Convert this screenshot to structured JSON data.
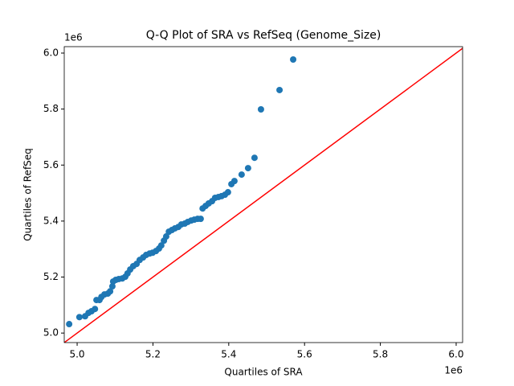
{
  "chart_data": {
    "type": "scatter",
    "title": "Q-Q Plot of SRA vs RefSeq (Genome_Size)",
    "x_label": "Quartiles of SRA",
    "y_label": "Quartiles of RefSeq",
    "x_offset_label": "1e6",
    "y_offset_label": "1e6",
    "xlim": [
      4.966,
      6.017
    ],
    "ylim": [
      4.966,
      6.023
    ],
    "xticks": [
      {
        "value": 5.0,
        "label": "5.0"
      },
      {
        "value": 5.2,
        "label": "5.2"
      },
      {
        "value": 5.4,
        "label": "5.4"
      },
      {
        "value": 5.6,
        "label": "5.6"
      },
      {
        "value": 5.8,
        "label": "5.8"
      },
      {
        "value": 6.0,
        "label": "6.0"
      }
    ],
    "yticks": [
      {
        "value": 5.0,
        "label": "5.0"
      },
      {
        "value": 5.2,
        "label": "5.2"
      },
      {
        "value": 5.4,
        "label": "5.4"
      },
      {
        "value": 5.6,
        "label": "5.6"
      },
      {
        "value": 5.8,
        "label": "5.8"
      },
      {
        "value": 6.0,
        "label": "6.0"
      }
    ],
    "color": "#1f77b4",
    "reference_line_color": "#ff0000",
    "x": [
      4.979,
      5.006,
      5.021,
      5.03,
      5.038,
      5.047,
      5.051,
      5.059,
      5.064,
      5.072,
      5.081,
      5.087,
      5.093,
      5.095,
      5.102,
      5.11,
      5.119,
      5.127,
      5.133,
      5.14,
      5.148,
      5.157,
      5.165,
      5.174,
      5.182,
      5.191,
      5.199,
      5.208,
      5.216,
      5.222,
      5.229,
      5.235,
      5.242,
      5.25,
      5.258,
      5.267,
      5.275,
      5.284,
      5.292,
      5.301,
      5.309,
      5.318,
      5.326,
      5.331,
      5.339,
      5.347,
      5.356,
      5.364,
      5.373,
      5.381,
      5.39,
      5.398,
      5.407,
      5.415,
      5.434,
      5.451,
      5.468,
      5.485,
      5.534,
      5.57
    ],
    "values": [
      5.032,
      5.057,
      5.06,
      5.072,
      5.078,
      5.086,
      5.118,
      5.118,
      5.129,
      5.138,
      5.141,
      5.149,
      5.167,
      5.184,
      5.19,
      5.193,
      5.195,
      5.201,
      5.213,
      5.227,
      5.239,
      5.247,
      5.261,
      5.27,
      5.279,
      5.284,
      5.287,
      5.293,
      5.302,
      5.313,
      5.33,
      5.345,
      5.362,
      5.368,
      5.374,
      5.379,
      5.388,
      5.391,
      5.397,
      5.402,
      5.405,
      5.408,
      5.408,
      5.445,
      5.454,
      5.463,
      5.471,
      5.483,
      5.486,
      5.489,
      5.494,
      5.503,
      5.532,
      5.543,
      5.566,
      5.589,
      5.626,
      5.799,
      5.868,
      5.977
    ]
  }
}
